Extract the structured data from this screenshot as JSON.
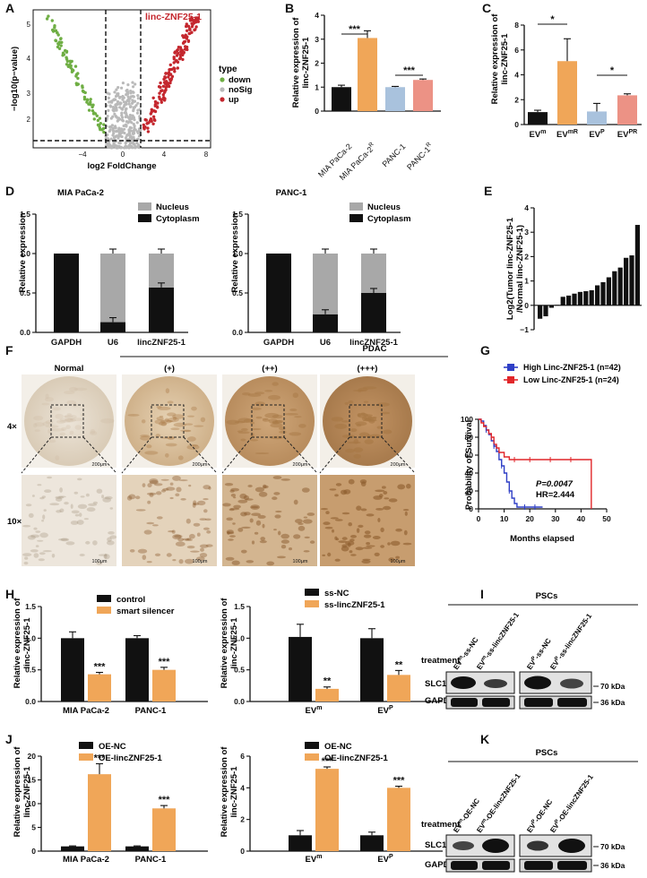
{
  "colors": {
    "black": "#111111",
    "orange": "#f0a658",
    "blue": "#a9c2dd",
    "salmon": "#ec9285",
    "grey": "#a8a8a8",
    "down": "#6fae44",
    "nosig": "#b9b9b9",
    "up": "#c4272e",
    "hi": "#2f3fc6",
    "lo": "#e1262a"
  },
  "panels": {
    "A": "A",
    "B": "B",
    "C": "C",
    "D": "D",
    "E": "E",
    "F": "F",
    "G": "G",
    "H": "H",
    "I": "I",
    "J": "J",
    "K": "K"
  },
  "volcano": {
    "xlabel": "log2 FoldChange",
    "ylabel": "−log10(p−value)",
    "highlight": "linc-ZNF25-1",
    "legend_title": "type",
    "legend": [
      "down",
      "noSig",
      "up"
    ],
    "yticks": [
      "2",
      "3",
      "4",
      "5"
    ],
    "xticks": [
      "−4",
      "0",
      "4",
      "8"
    ]
  },
  "B": {
    "ylabel1": "Relative expression of",
    "ylabel2": "linc-ZNF25-1",
    "sig": [
      "***",
      "***"
    ],
    "yticks": [
      "0",
      "1",
      "2",
      "3",
      "4"
    ]
  },
  "C": {
    "ylabel1": "Relative expression of",
    "ylabel2": "linc-ZNF25-1",
    "sig": [
      "*",
      "*"
    ],
    "yticks": [
      "0",
      "2",
      "4",
      "6",
      "8"
    ]
  },
  "D": {
    "title1": "MIA PaCa-2",
    "title2": "PANC-1",
    "ylabel": "Relative expression",
    "legend": [
      "Nucleus",
      "Cytoplasm"
    ],
    "categories": [
      "GAPDH",
      "U6",
      "lincZNF25-1"
    ],
    "yticks": [
      "0.0",
      "0.5",
      "1.0",
      "1.5"
    ]
  },
  "E": {
    "ylabel1": "Log2(Tumor linc-ZNF25-1",
    "ylabel2": "/Normal linc-ZNF25-1)",
    "yticks": [
      "−1",
      "0",
      "1",
      "2",
      "3",
      "4"
    ]
  },
  "F": {
    "pdac": "PDAC",
    "cols": [
      "Normal",
      "(+)",
      "(++)",
      "(+++)"
    ],
    "rows": [
      "4×",
      "10×"
    ],
    "scale1": "200μm",
    "scale2": "100μm"
  },
  "G": {
    "legend": [
      "High Linc-ZNF25-1 (n=42)",
      "Low Linc-ZNF25-1 (n=24)"
    ],
    "ylabel": "Probability of Survival",
    "xlabel": "Months elapsed",
    "p": "P=0.0047",
    "hr": "HR=2.444",
    "xticks": [
      "0",
      "10",
      "20",
      "30",
      "40",
      "50"
    ],
    "yticks": [
      "0",
      "20",
      "40",
      "60",
      "80",
      "100"
    ]
  },
  "H": {
    "ylabel1": "Relative expression of",
    "ylabel2": "linc-ZNF25-1",
    "legend1": [
      "control",
      "smart silencer"
    ],
    "legend2": [
      "ss-NC",
      "ss-lincZNF25-1"
    ],
    "cats1": [
      "MIA PaCa-2",
      "PANC-1"
    ],
    "sig1": [
      "***",
      "***"
    ],
    "sig2": [
      "**",
      "**"
    ],
    "yticks": [
      "0.0",
      "0.5",
      "1.0",
      "1.5"
    ]
  },
  "J": {
    "ylabel1": "Relative expression of",
    "ylabel2": "linc-ZNF25-1",
    "legend1": [
      "OE-NC",
      "OE-lincZNF25-1"
    ],
    "legend2": [
      "OE-NC",
      "OE-lincZNF25-1"
    ],
    "cats1": [
      "MIA PaCa-2",
      "PANC-1"
    ],
    "sig1": [
      "***",
      "***"
    ],
    "sig2": [
      "***",
      "***"
    ],
    "yticks1": [
      "0",
      "5",
      "10",
      "15",
      "20"
    ],
    "yticks2": [
      "0",
      "2",
      "4",
      "6"
    ]
  },
  "blotI": {
    "title": "PSCs",
    "treatment": "treatment",
    "lanes": [
      "EVm-ss-NC",
      "EVm-ss-lincZNF25-1",
      "EVP-ss-NC",
      "EVP-ss-lincZNF25-1"
    ],
    "bands": [
      "SLC1A5",
      "GAPDH"
    ],
    "kda": [
      "70 kDa",
      "36 kDa"
    ]
  },
  "blotK": {
    "title": "PSCs",
    "treatment": "treatment",
    "lanes": [
      "EVm-OE-NC",
      "EVm-OE-lincZNF25-1",
      "EVP-OE-NC",
      "EVP-OE-lincZNF25-1"
    ],
    "bands": [
      "SLC1A5",
      "GAPDH"
    ],
    "kda": [
      "70 kDa",
      "36 kDa"
    ]
  },
  "chart_data": [
    {
      "panel": "B",
      "type": "bar",
      "categories": [
        "MIA PaCa-2",
        "MIA PaCa-2R",
        "PANC-1",
        "PANC-1R"
      ],
      "values": [
        1.0,
        3.05,
        1.0,
        1.3
      ],
      "errors": [
        0.08,
        0.3,
        0.03,
        0.04
      ],
      "ylim": [
        0,
        4
      ]
    },
    {
      "panel": "C",
      "type": "bar",
      "categories": [
        "EVm",
        "EVmR",
        "EVP",
        "EVPR"
      ],
      "values": [
        1.0,
        5.1,
        1.05,
        2.35
      ],
      "errors": [
        0.15,
        1.8,
        0.65,
        0.12
      ],
      "ylim": [
        0,
        8
      ]
    },
    {
      "panel": "D1",
      "type": "bar",
      "categories": [
        "GAPDH",
        "U6",
        "lincZNF25-1"
      ],
      "series": [
        {
          "name": "Cytoplasm",
          "values": [
            1.0,
            0.13,
            0.57
          ]
        },
        {
          "name": "Nucleus",
          "values": [
            0.0,
            0.87,
            0.43
          ]
        }
      ],
      "ylim": [
        0,
        1.5
      ]
    },
    {
      "panel": "D2",
      "type": "bar",
      "categories": [
        "GAPDH",
        "U6",
        "lincZNF25-1"
      ],
      "series": [
        {
          "name": "Cytoplasm",
          "values": [
            1.0,
            0.23,
            0.5
          ]
        },
        {
          "name": "Nucleus",
          "values": [
            0.0,
            0.77,
            0.5
          ]
        }
      ],
      "ylim": [
        0,
        1.5
      ]
    },
    {
      "panel": "E",
      "type": "bar",
      "values": [
        -0.55,
        -0.45,
        -0.1,
        0.02,
        0.35,
        0.4,
        0.48,
        0.55,
        0.58,
        0.62,
        0.82,
        0.95,
        1.15,
        1.4,
        1.55,
        1.95,
        2.05,
        3.3
      ],
      "ylim": [
        -1,
        4
      ]
    },
    {
      "panel": "G",
      "type": "line",
      "xlim": [
        0,
        50
      ],
      "ylim": [
        0,
        100
      ]
    },
    {
      "panel": "H1",
      "type": "bar",
      "categories": [
        "MIA PaCa-2",
        "PANC-1"
      ],
      "series": [
        {
          "name": "control",
          "values": [
            1.0,
            1.0
          ],
          "errors": [
            0.1,
            0.04
          ]
        },
        {
          "name": "smart silencer",
          "values": [
            0.43,
            0.5
          ],
          "errors": [
            0.03,
            0.04
          ]
        }
      ],
      "ylim": [
        0,
        1.5
      ]
    },
    {
      "panel": "H2",
      "type": "bar",
      "categories": [
        "EVm",
        "EVP"
      ],
      "series": [
        {
          "name": "ss-NC",
          "values": [
            1.02,
            1.0
          ],
          "errors": [
            0.2,
            0.15
          ]
        },
        {
          "name": "ss-lincZNF25-1",
          "values": [
            0.2,
            0.42
          ],
          "errors": [
            0.03,
            0.07
          ]
        }
      ],
      "ylim": [
        0,
        1.5
      ]
    },
    {
      "panel": "J1",
      "type": "bar",
      "categories": [
        "MIA PaCa-2",
        "PANC-1"
      ],
      "series": [
        {
          "name": "OE-NC",
          "values": [
            1.0,
            1.0
          ],
          "errors": [
            0.1,
            0.1
          ]
        },
        {
          "name": "OE-lincZNF25-1",
          "values": [
            16.2,
            9.0
          ],
          "errors": [
            2.2,
            0.6
          ]
        }
      ],
      "ylim": [
        0,
        20
      ]
    },
    {
      "panel": "J2",
      "type": "bar",
      "categories": [
        "EVm",
        "EVP"
      ],
      "series": [
        {
          "name": "OE-NC",
          "values": [
            1.0,
            1.0
          ],
          "errors": [
            0.3,
            0.2
          ]
        },
        {
          "name": "OE-lincZNF25-1",
          "values": [
            5.2,
            4.0
          ],
          "errors": [
            0.12,
            0.1
          ]
        }
      ],
      "ylim": [
        0,
        6
      ]
    }
  ]
}
